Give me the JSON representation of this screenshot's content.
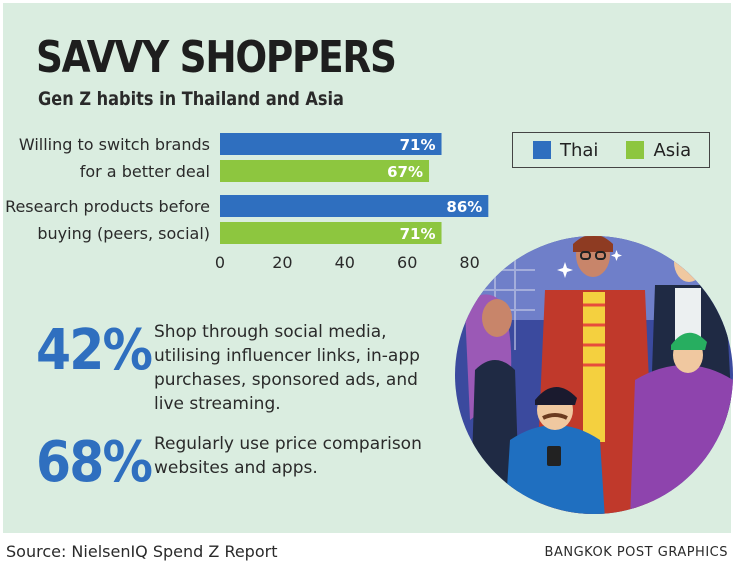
{
  "title": "SAVVY SHOPPERS",
  "subtitle": "Gen Z habits in Thailand and Asia",
  "chart_data": {
    "type": "bar",
    "orientation": "horizontal",
    "categories": [
      [
        "Willing to switch brands",
        "for a better deal"
      ],
      [
        "Research products before",
        "buying (peers, social)"
      ]
    ],
    "series": [
      {
        "name": "Thai",
        "values": [
          71,
          86
        ],
        "labels": [
          "71%",
          "86%"
        ],
        "color": "#2f6fbf"
      },
      {
        "name": "Asia",
        "values": [
          67,
          71
        ],
        "labels": [
          "67%",
          "71%"
        ],
        "color": "#8dc63f"
      }
    ],
    "xlim": [
      0,
      85
    ],
    "xticks": [
      "0",
      "20",
      "40",
      "60",
      "80"
    ],
    "legend": "top-right",
    "grid": false
  },
  "stats": [
    {
      "value": "42%",
      "text": "Shop through social media, utilising influencer links, in-app purchases, sponsored ads, and live streaming."
    },
    {
      "value": "68%",
      "text": "Regularly use price comparison websites and apps."
    }
  ],
  "footer": {
    "source": "Source: NielsenIQ Spend Z Report",
    "credit": "BANGKOK POST GRAPHICS"
  }
}
